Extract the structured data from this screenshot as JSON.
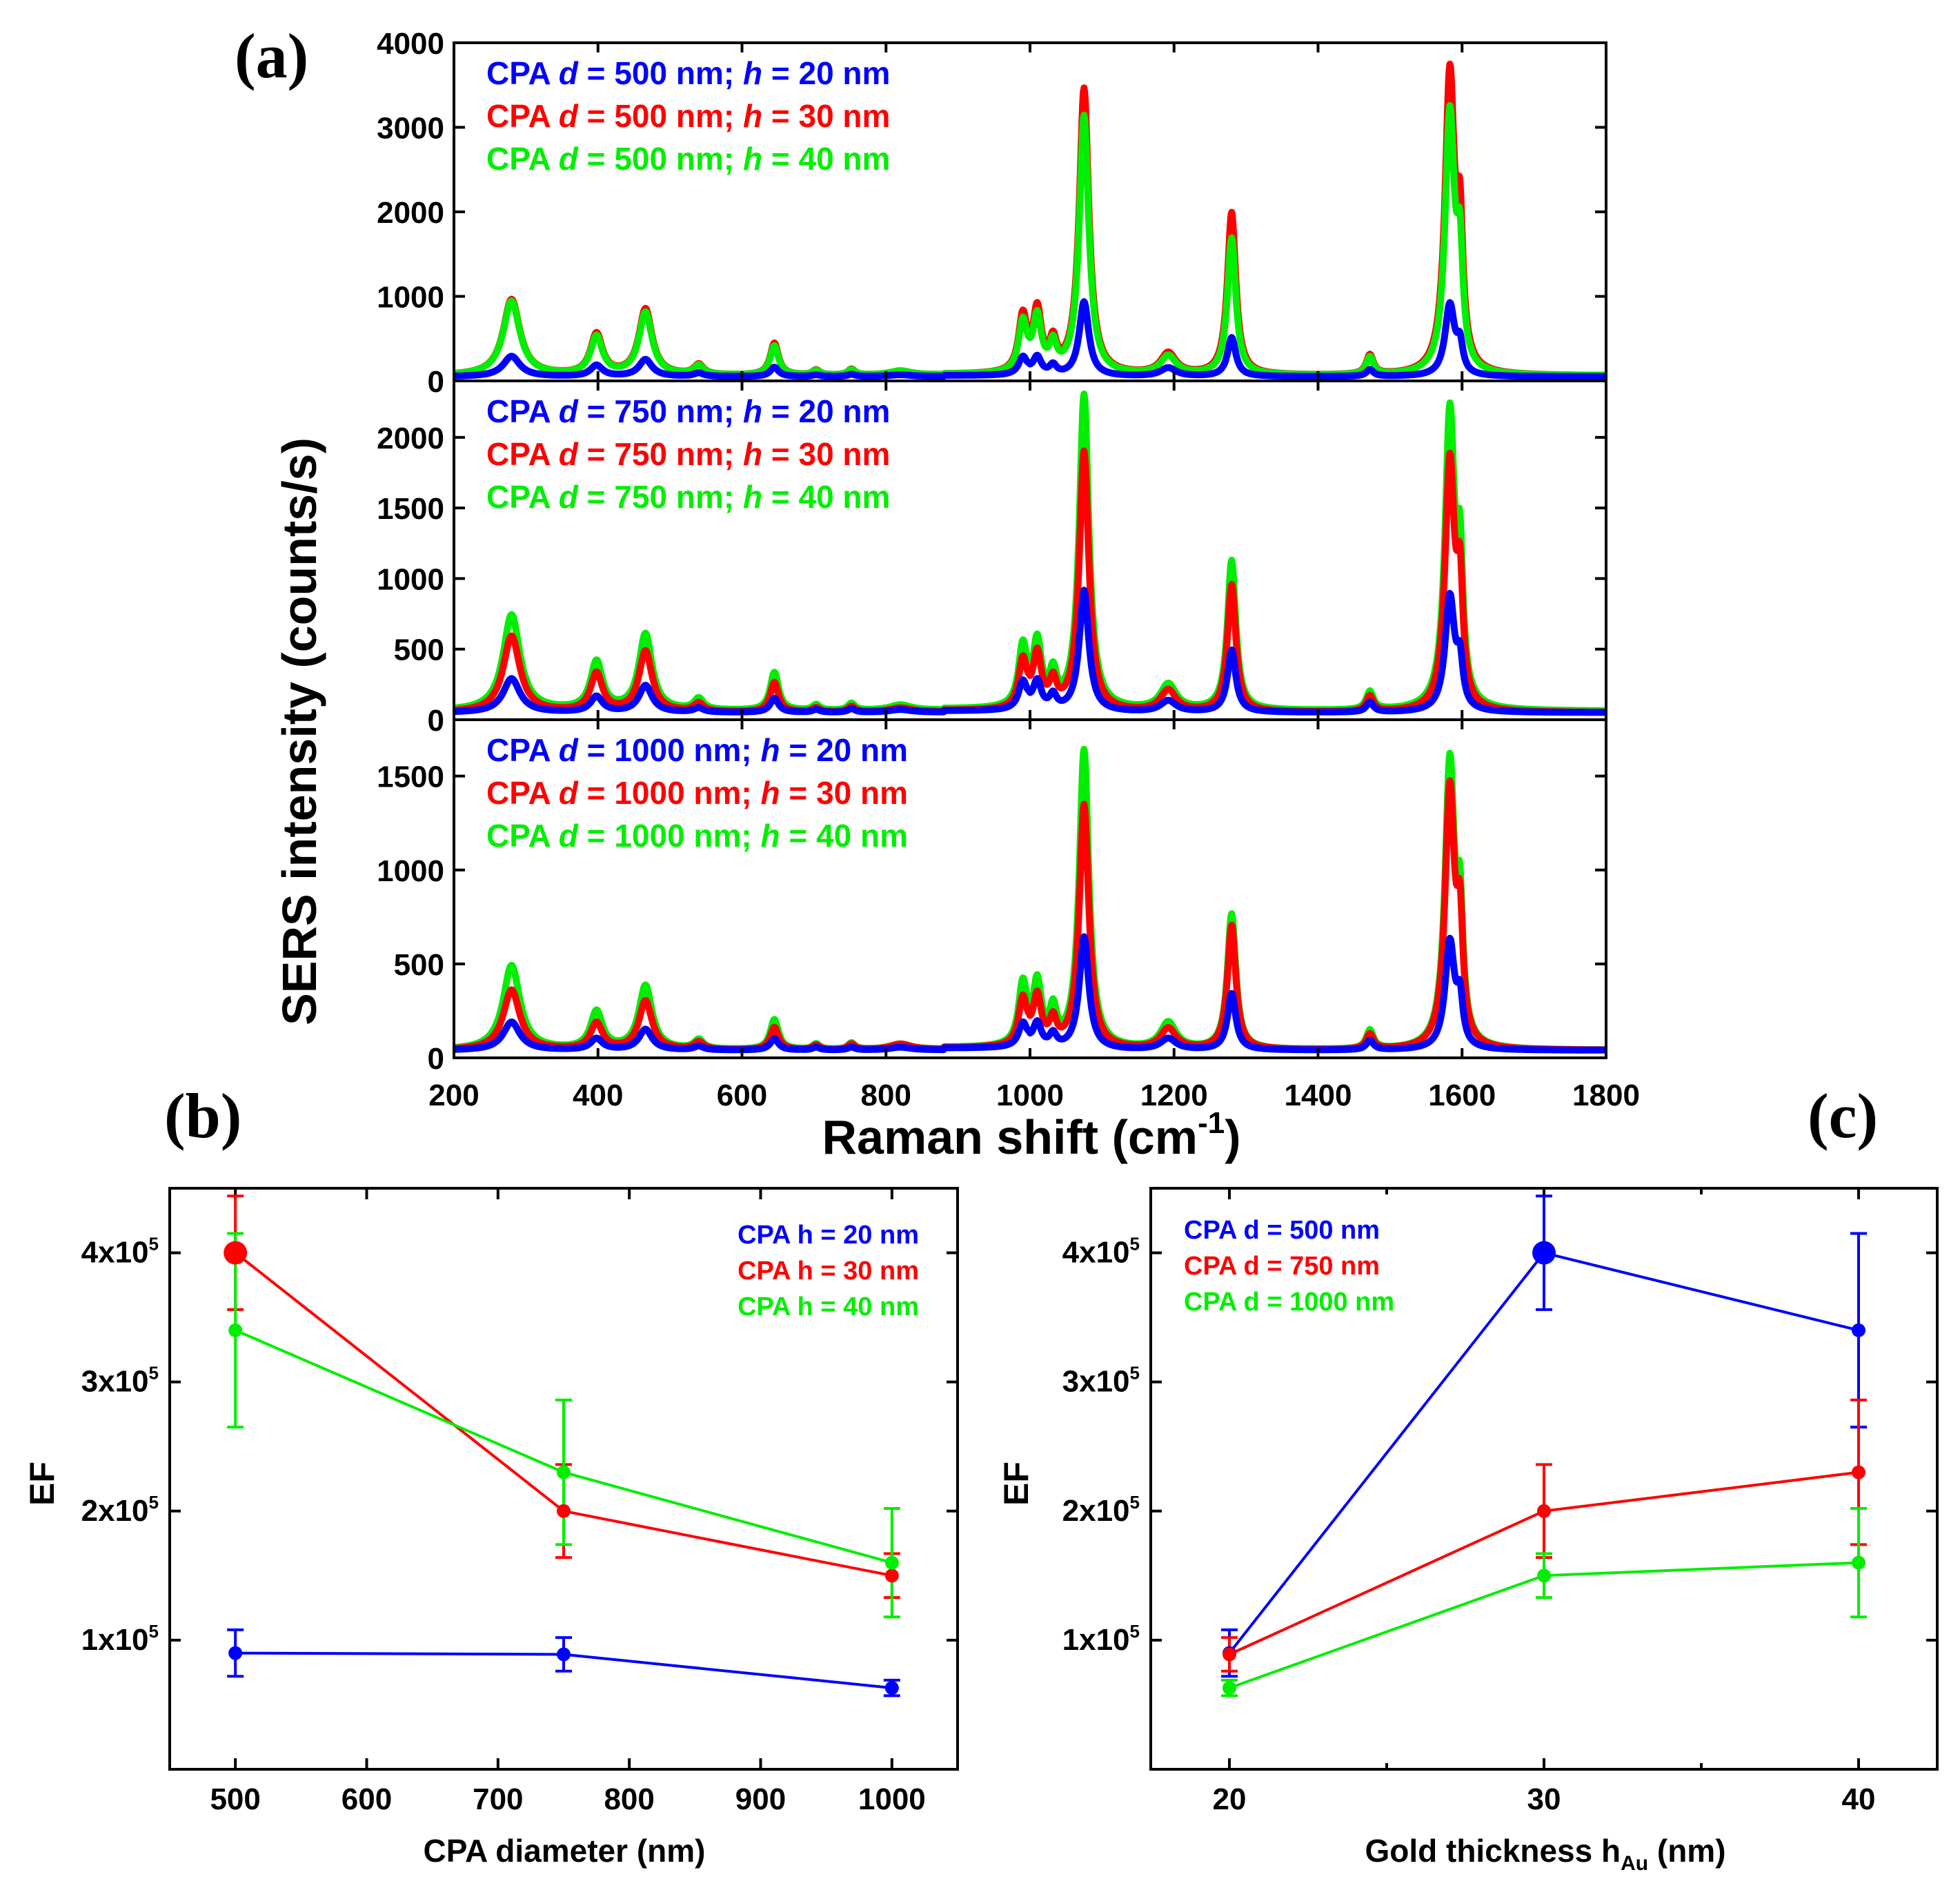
{
  "panel_labels": {
    "a": "(a)",
    "b": "(b)",
    "c": "(c)"
  },
  "colors": {
    "h20": "#0000ff",
    "h30": "#ff0000",
    "h40": "#00ee00"
  },
  "chart_data": [
    {
      "id": "a",
      "type": "line",
      "ylabel": "SERS intensity (counts/s)",
      "xlabel": "Raman shift (cm",
      "xlabel_sup": "-1",
      "xlabel_end": ")",
      "xlim": [
        200,
        1800
      ],
      "xticks": [
        200,
        400,
        600,
        800,
        1000,
        1200,
        1400,
        1600,
        1800
      ],
      "peak_positions": [
        280,
        398,
        466,
        540,
        645,
        703,
        752,
        820,
        990,
        1010,
        1032,
        1075,
        1192,
        1280,
        1472,
        1583,
        1597
      ],
      "subpanels": [
        {
          "ylim": [
            0,
            4000
          ],
          "yticks": [
            0,
            1000,
            2000,
            3000,
            4000
          ],
          "legend": [
            {
              "pre": "CPA ",
              "d_sym": "d",
              "mid": " = 500 nm; ",
              "h_sym": "h",
              "post": " = 20 nm",
              "color": "#0000ff"
            },
            {
              "pre": "CPA ",
              "d_sym": "d",
              "mid": " = 500 nm; ",
              "h_sym": "h",
              "post": " = 30 nm",
              "color": "#ff0000"
            },
            {
              "pre": "CPA ",
              "d_sym": "d",
              "mid": " = 500 nm; ",
              "h_sym": "h",
              "post": " = 40 nm",
              "color": "#00ee00"
            }
          ],
          "series": [
            {
              "name": "h = 30 nm",
              "color": "#ff0000",
              "baseline": 60,
              "heights": [
                900,
                480,
                780,
                120,
                380,
                60,
                70,
                50,
                650,
                720,
                330,
                3380,
                250,
                1920,
                230,
                3520,
                1450
              ]
            },
            {
              "name": "h = 40 nm",
              "color": "#00ee00",
              "baseline": 60,
              "heights": [
                880,
                450,
                740,
                110,
                350,
                55,
                65,
                50,
                580,
                640,
                300,
                3060,
                220,
                1620,
                210,
                3060,
                1200
              ]
            },
            {
              "name": "h = 20 nm",
              "color": "#0000ff",
              "baseline": 50,
              "heights": [
                240,
                130,
                200,
                40,
                110,
                20,
                25,
                20,
                200,
                210,
                110,
                880,
                100,
                460,
                80,
                840,
                320
              ]
            }
          ]
        },
        {
          "ylim": [
            0,
            2400
          ],
          "yticks": [
            0,
            500,
            1000,
            1500,
            2000
          ],
          "legend": [
            {
              "pre": "CPA ",
              "d_sym": "d",
              "mid": " = 750 nm; ",
              "h_sym": "h",
              "post": " = 20 nm",
              "color": "#0000ff"
            },
            {
              "pre": "CPA ",
              "d_sym": "d",
              "mid": " = 750 nm; ",
              "h_sym": "h",
              "post": " = 30 nm",
              "color": "#ff0000"
            },
            {
              "pre": "CPA ",
              "d_sym": "d",
              "mid": " = 750 nm; ",
              "h_sym": "h",
              "post": " = 40 nm",
              "color": "#00ee00"
            }
          ],
          "series": [
            {
              "name": "h = 40 nm",
              "color": "#00ee00",
              "baseline": 60,
              "heights": [
                680,
                340,
                540,
                80,
                270,
                40,
                50,
                40,
                420,
                450,
                220,
                2230,
                180,
                1060,
                130,
                2080,
                900
              ]
            },
            {
              "name": "h = 30 nm",
              "color": "#ff0000",
              "baseline": 50,
              "heights": [
                540,
                270,
                430,
                60,
                210,
                30,
                40,
                30,
                330,
                380,
                180,
                1840,
                150,
                900,
                110,
                1750,
                760
              ]
            },
            {
              "name": "h = 20 nm",
              "color": "#0000ff",
              "baseline": 50,
              "heights": [
                240,
                110,
                190,
                30,
                100,
                20,
                25,
                20,
                190,
                200,
                100,
                860,
                80,
                440,
                70,
                810,
                300
              ]
            }
          ]
        },
        {
          "ylim": [
            0,
            1800
          ],
          "yticks": [
            0,
            500,
            1000,
            1500
          ],
          "legend": [
            {
              "pre": "CPA ",
              "d_sym": "d",
              "mid": " = 1000 nm; ",
              "h_sym": "h",
              "post": " = 20 nm",
              "color": "#0000ff"
            },
            {
              "pre": "CPA ",
              "d_sym": "d",
              "mid": " = 1000 nm; ",
              "h_sym": "h",
              "post": " = 30 nm",
              "color": "#ff0000"
            },
            {
              "pre": "CPA ",
              "d_sym": "d",
              "mid": " = 1000 nm; ",
              "h_sym": "h",
              "post": " = 40 nm",
              "color": "#00ee00"
            }
          ],
          "series": [
            {
              "name": "h = 40 nm",
              "color": "#00ee00",
              "baseline": 40,
              "heights": [
                450,
                200,
                340,
                50,
                160,
                30,
                35,
                30,
                320,
                330,
                180,
                1590,
                140,
                720,
                100,
                1510,
                620
              ]
            },
            {
              "name": "h = 30 nm",
              "color": "#ff0000",
              "baseline": 40,
              "heights": [
                320,
                140,
                260,
                40,
                120,
                25,
                30,
                30,
                240,
                260,
                130,
                1300,
                110,
                660,
                80,
                1370,
                560
              ]
            },
            {
              "name": "h = 20 nm",
              "color": "#0000ff",
              "baseline": 40,
              "heights": [
                150,
                60,
                110,
                20,
                60,
                15,
                15,
                15,
                120,
                130,
                70,
                600,
                60,
                300,
                50,
                570,
                230
              ]
            }
          ]
        }
      ]
    },
    {
      "id": "b",
      "type": "line",
      "xlabel": "CPA diameter (nm)",
      "ylabel": "EF",
      "xlim": [
        450,
        1050
      ],
      "ylim": [
        0,
        450000
      ],
      "xticks": [
        500,
        600,
        700,
        800,
        900,
        1000
      ],
      "yticks": [
        100000,
        200000,
        300000,
        400000
      ],
      "ytick_labels": [
        {
          "base": "1x10",
          "exp": "5"
        },
        {
          "base": "2x10",
          "exp": "5"
        },
        {
          "base": "3x10",
          "exp": "5"
        },
        {
          "base": "4x10",
          "exp": "5"
        }
      ],
      "series": [
        {
          "name": "CPA h = 20 nm",
          "color": "#0000ff",
          "x": [
            500,
            750,
            1000
          ],
          "y": [
            90000,
            89000,
            63000
          ],
          "err": [
            18000,
            13000,
            6000
          ],
          "big": [
            false,
            false,
            false
          ]
        },
        {
          "name": "CPA h = 30 nm",
          "color": "#ff0000",
          "x": [
            500,
            750,
            1000
          ],
          "y": [
            400000,
            200000,
            150000
          ],
          "err": [
            44000,
            36000,
            17000
          ],
          "big": [
            true,
            false,
            false
          ]
        },
        {
          "name": "CPA h = 40 nm",
          "color": "#00ee00",
          "x": [
            500,
            750,
            1000
          ],
          "y": [
            340000,
            230000,
            160000
          ],
          "err": [
            75000,
            56000,
            42000
          ],
          "big": [
            false,
            false,
            false
          ]
        }
      ]
    },
    {
      "id": "c",
      "type": "line",
      "xlabel": "Gold thickness h",
      "xlabel_sub": "Au",
      "xlabel_end": " (nm)",
      "ylabel": "EF",
      "xlim": [
        17.5,
        42.5
      ],
      "ylim": [
        0,
        450000
      ],
      "xticks": [
        20,
        30,
        40
      ],
      "xticks_minor": [
        25,
        35
      ],
      "yticks": [
        100000,
        200000,
        300000,
        400000
      ],
      "ytick_labels": [
        {
          "base": "1x10",
          "exp": "5"
        },
        {
          "base": "2x10",
          "exp": "5"
        },
        {
          "base": "3x10",
          "exp": "5"
        },
        {
          "base": "4x10",
          "exp": "5"
        }
      ],
      "series": [
        {
          "name": "CPA d = 500 nm",
          "color": "#0000ff",
          "x": [
            20,
            30,
            40
          ],
          "y": [
            90000,
            400000,
            340000
          ],
          "err": [
            18000,
            44000,
            75000
          ],
          "big": [
            false,
            true,
            false
          ]
        },
        {
          "name": "CPA d = 750 nm",
          "color": "#ff0000",
          "x": [
            20,
            30,
            40
          ],
          "y": [
            89000,
            200000,
            230000
          ],
          "err": [
            13000,
            36000,
            56000
          ],
          "big": [
            false,
            false,
            false
          ]
        },
        {
          "name": "CPA d = 1000 nm",
          "color": "#00ee00",
          "x": [
            20,
            30,
            40
          ],
          "y": [
            63000,
            150000,
            160000
          ],
          "err": [
            6000,
            17000,
            42000
          ],
          "big": [
            false,
            false,
            false
          ]
        }
      ]
    }
  ]
}
